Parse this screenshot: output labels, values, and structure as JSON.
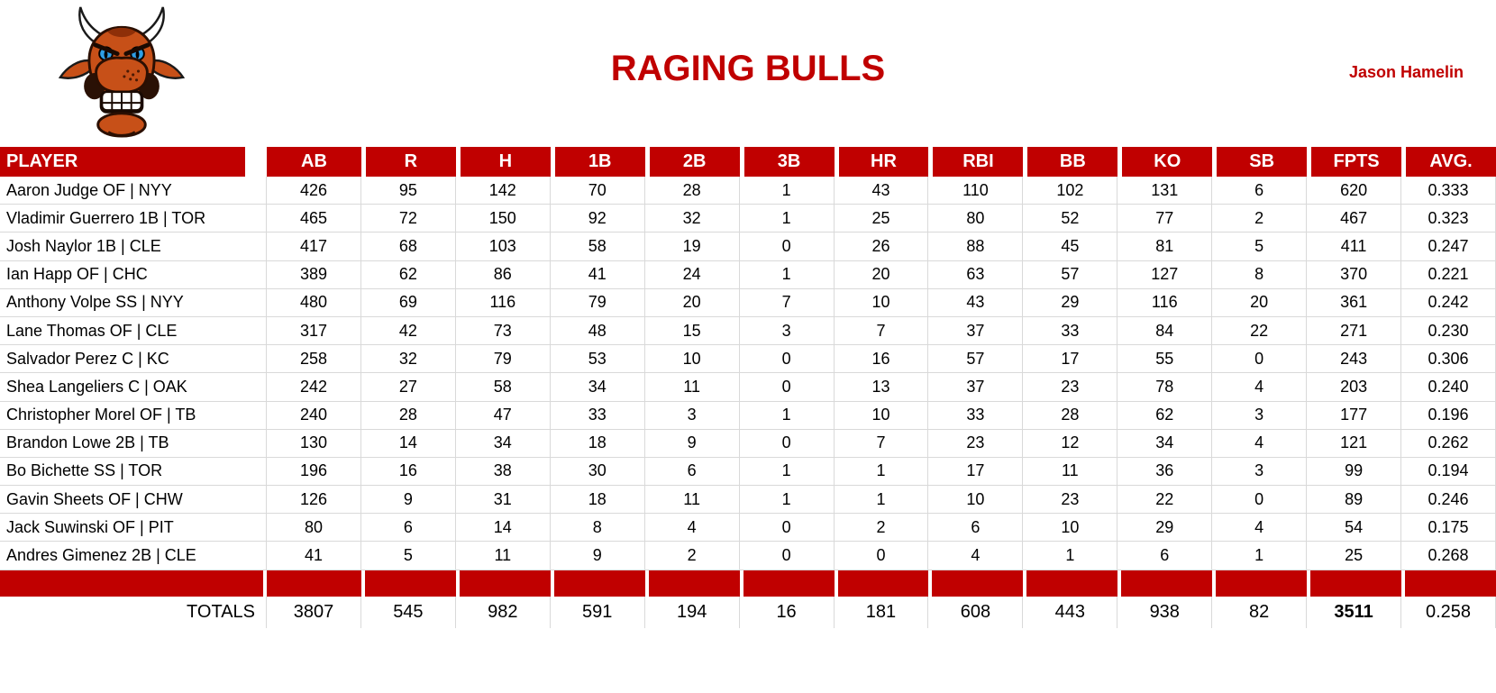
{
  "team": {
    "title": "RAGING BULLS",
    "owner": "Jason Hamelin",
    "logo": "angry-bull-logo"
  },
  "colors": {
    "accent_red": "#C00000",
    "grid_border_gray": "#D9D9D9",
    "header_text": "#FFFFFF",
    "body_text": "#000000",
    "bull_orange": "#C75018",
    "bull_eye_blue": "#2E9FE6"
  },
  "table": {
    "columns": [
      "PLAYER",
      "AB",
      "R",
      "H",
      "1B",
      "2B",
      "3B",
      "HR",
      "RBI",
      "BB",
      "KO",
      "SB",
      "FPTS",
      "AVG."
    ],
    "players": [
      {
        "name": "Aaron Judge OF | NYY",
        "stats": [
          426,
          95,
          142,
          70,
          28,
          1,
          43,
          110,
          102,
          131,
          6,
          620,
          "0.333"
        ]
      },
      {
        "name": "Vladimir Guerrero 1B | TOR",
        "stats": [
          465,
          72,
          150,
          92,
          32,
          1,
          25,
          80,
          52,
          77,
          2,
          467,
          "0.323"
        ]
      },
      {
        "name": "Josh Naylor 1B | CLE",
        "stats": [
          417,
          68,
          103,
          58,
          19,
          0,
          26,
          88,
          45,
          81,
          5,
          411,
          "0.247"
        ]
      },
      {
        "name": "Ian Happ OF | CHC",
        "stats": [
          389,
          62,
          86,
          41,
          24,
          1,
          20,
          63,
          57,
          127,
          8,
          370,
          "0.221"
        ]
      },
      {
        "name": "Anthony Volpe SS | NYY",
        "stats": [
          480,
          69,
          116,
          79,
          20,
          7,
          10,
          43,
          29,
          116,
          20,
          361,
          "0.242"
        ]
      },
      {
        "name": "Lane Thomas OF | CLE",
        "stats": [
          317,
          42,
          73,
          48,
          15,
          3,
          7,
          37,
          33,
          84,
          22,
          271,
          "0.230"
        ]
      },
      {
        "name": "Salvador Perez C | KC",
        "stats": [
          258,
          32,
          79,
          53,
          10,
          0,
          16,
          57,
          17,
          55,
          0,
          243,
          "0.306"
        ]
      },
      {
        "name": "Shea Langeliers C | OAK",
        "stats": [
          242,
          27,
          58,
          34,
          11,
          0,
          13,
          37,
          23,
          78,
          4,
          203,
          "0.240"
        ]
      },
      {
        "name": "Christopher Morel OF | TB",
        "stats": [
          240,
          28,
          47,
          33,
          3,
          1,
          10,
          33,
          28,
          62,
          3,
          177,
          "0.196"
        ]
      },
      {
        "name": "Brandon Lowe 2B | TB",
        "stats": [
          130,
          14,
          34,
          18,
          9,
          0,
          7,
          23,
          12,
          34,
          4,
          121,
          "0.262"
        ]
      },
      {
        "name": "Bo Bichette SS | TOR",
        "stats": [
          196,
          16,
          38,
          30,
          6,
          1,
          1,
          17,
          11,
          36,
          3,
          99,
          "0.194"
        ]
      },
      {
        "name": "Gavin Sheets OF | CHW",
        "stats": [
          126,
          9,
          31,
          18,
          11,
          1,
          1,
          10,
          23,
          22,
          0,
          89,
          "0.246"
        ]
      },
      {
        "name": "Jack Suwinski OF | PIT",
        "stats": [
          80,
          6,
          14,
          8,
          4,
          0,
          2,
          6,
          10,
          29,
          4,
          54,
          "0.175"
        ]
      },
      {
        "name": "Andres Gimenez 2B | CLE",
        "stats": [
          41,
          5,
          11,
          9,
          2,
          0,
          0,
          4,
          1,
          6,
          1,
          25,
          "0.268"
        ]
      }
    ],
    "totals": {
      "label": "TOTALS",
      "stats": [
        3807,
        545,
        982,
        591,
        194,
        16,
        181,
        608,
        443,
        938,
        82,
        3511,
        "0.258"
      ]
    }
  }
}
